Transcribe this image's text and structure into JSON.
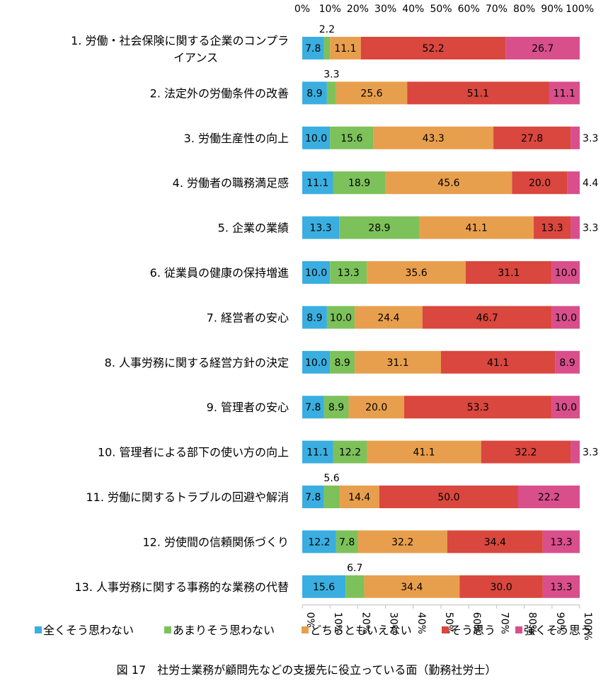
{
  "caption": "図 17　社労士業務が顧問先などの支援先に役立っている面（勤務社労士）",
  "chart_data": {
    "type": "bar",
    "orientation": "horizontal",
    "stacked": "percent",
    "xlim": [
      0,
      100
    ],
    "x_ticks": [
      "0%",
      "10%",
      "20%",
      "30%",
      "40%",
      "50%",
      "60%",
      "70%",
      "80%",
      "90%",
      "100%"
    ],
    "x_axis_position": "top-and-bottom",
    "grid": false,
    "legend_position": "bottom",
    "categories": [
      "1. 労働・社会保険に関する企業のコンプライアンス",
      "2. 法定外の労働条件の改善",
      "3. 労働生産性の向上",
      "4. 労働者の職務満足感",
      "5. 企業の業績",
      "6. 従業員の健康の保持増進",
      "7. 経営者の安心",
      "8. 人事労務に関する経営方針の決定",
      "9. 管理者の安心",
      "10. 管理者による部下の使い方の向上",
      "11. 労働に関するトラブルの回避や解消",
      "12. 労使間の信頼関係づくり",
      "13. 人事労務に関する事務的な業務の代替"
    ],
    "category_label_lines": [
      [
        "1. 労働・社会保険に関する企業のコンプラ",
        "イアンス"
      ],
      [
        "2. 法定外の労働条件の改善"
      ],
      [
        "3. 労働生産性の向上"
      ],
      [
        "4. 労働者の職務満足感"
      ],
      [
        "5. 企業の業績"
      ],
      [
        "6. 従業員の健康の保持増進"
      ],
      [
        "7. 経営者の安心"
      ],
      [
        "8. 人事労務に関する経営方針の決定"
      ],
      [
        "9. 管理者の安心"
      ],
      [
        "10. 管理者による部下の使い方の向上"
      ],
      [
        "11. 労働に関するトラブルの回避や解消"
      ],
      [
        "12. 労使間の信頼関係づくり"
      ],
      [
        "13. 人事労務に関する事務的な業務の代替"
      ]
    ],
    "series": [
      {
        "name": "全くそう思わない",
        "color": "#3AAEE0",
        "values": [
          7.8,
          8.9,
          10.0,
          11.1,
          13.3,
          10.0,
          8.9,
          10.0,
          7.8,
          11.1,
          7.8,
          12.2,
          15.6
        ]
      },
      {
        "name": "あまりそう思わない",
        "color": "#7DC15A",
        "values": [
          2.2,
          3.3,
          15.6,
          18.9,
          28.9,
          13.3,
          10.0,
          8.9,
          8.9,
          12.2,
          5.6,
          7.8,
          6.7
        ]
      },
      {
        "name": "どちらともいえない",
        "color": "#E89F4D",
        "values": [
          11.1,
          25.6,
          43.3,
          45.6,
          41.1,
          35.6,
          24.4,
          31.1,
          20.0,
          41.1,
          14.4,
          32.2,
          34.4
        ]
      },
      {
        "name": "そう思う",
        "color": "#D9473E",
        "values": [
          52.2,
          51.1,
          27.8,
          20.0,
          13.3,
          31.1,
          46.7,
          41.1,
          53.3,
          32.2,
          50.0,
          34.4,
          30.0
        ]
      },
      {
        "name": "強くそう思う",
        "color": "#D94F8B",
        "values": [
          26.7,
          11.1,
          3.3,
          4.4,
          3.3,
          10.0,
          10.0,
          8.9,
          10.0,
          3.3,
          22.2,
          13.3,
          13.3
        ]
      }
    ]
  }
}
